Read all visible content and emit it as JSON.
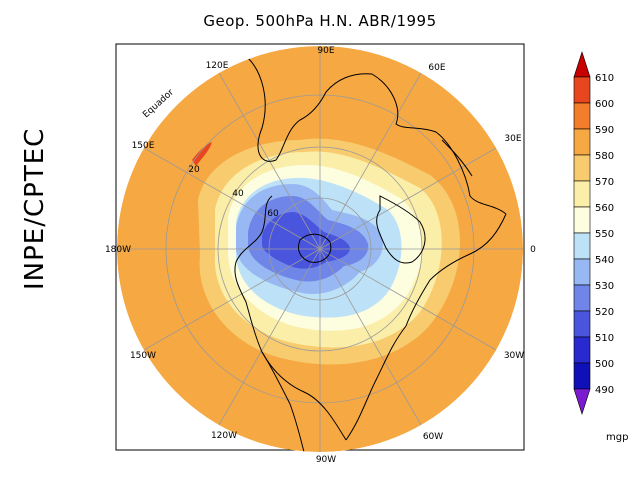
{
  "title": "Geop. 500hPa H.N. ABR/1995",
  "side_label": "INPE/CPTEC",
  "equator_label": "Equador",
  "longitude_labels": [
    "90E",
    "60E",
    "30E",
    "0",
    "30W",
    "60W",
    "90W",
    "120W",
    "150W",
    "180W",
    "150E",
    "120E"
  ],
  "latitude_labels": [
    "20",
    "40",
    "60"
  ],
  "colorbar": {
    "unit": "mgp",
    "levels": [
      "610",
      "600",
      "590",
      "580",
      "570",
      "560",
      "550",
      "540",
      "530",
      "520",
      "510",
      "500",
      "490"
    ],
    "colors": [
      "#c80000",
      "#e8461e",
      "#f27d2a",
      "#f6a843",
      "#f8cc6e",
      "#fbeea8",
      "#fdfde0",
      "#bde2f8",
      "#97b8f2",
      "#6f86e8",
      "#4a55dd",
      "#2929d0",
      "#1010b8",
      "#7a1bd0"
    ]
  }
}
